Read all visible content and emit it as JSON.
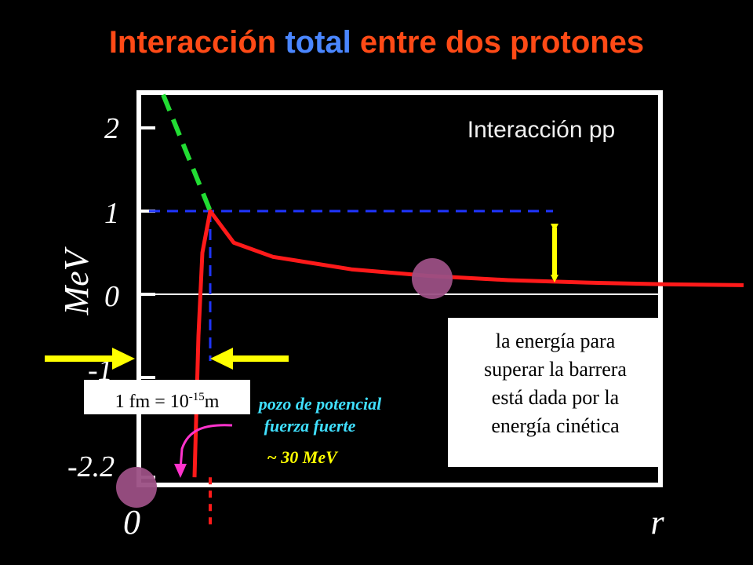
{
  "title": {
    "part1": "Interacción",
    "highlight": "total",
    "part2": "entre dos protones",
    "color_main": "#ff4a16",
    "color_highlight": "#4a86ff"
  },
  "chart_data": {
    "type": "line",
    "inset_label": "Interacción pp",
    "ylabel": "MeV",
    "xlabel": "r",
    "y_ticks": [
      "2",
      "1",
      "0",
      "-1",
      "-2.2"
    ],
    "x_origin_label": "0",
    "well_annotation": {
      "line1": "pozo de potencial",
      "line2": "fuerza fuerte",
      "depth": "~ 30 MeV"
    },
    "series": [
      {
        "style": "solid",
        "color": "#ff1a1a",
        "points": [
          [
            1.0,
            -2.2
          ],
          [
            1.05,
            -0.5
          ],
          [
            1.1,
            0.5
          ],
          [
            1.2,
            1.0
          ],
          [
            1.5,
            0.62
          ],
          [
            2,
            0.45
          ],
          [
            3,
            0.3
          ],
          [
            4,
            0.22
          ],
          [
            5,
            0.17
          ],
          [
            6,
            0.14
          ],
          [
            7,
            0.12
          ],
          [
            8,
            0.11
          ]
        ]
      },
      {
        "style": "dashed",
        "color": "#22dd33",
        "points": [
          [
            0.6,
            2.4
          ],
          [
            1.2,
            1.0
          ]
        ]
      },
      {
        "style": "dotted",
        "color": "#ff1a1a",
        "points": [
          [
            1.2,
            -2.2
          ],
          [
            1.2,
            -2.8
          ]
        ]
      }
    ],
    "barrier_height": 1,
    "colors": {
      "axis": "#ffffff",
      "guide": "#1f35ff",
      "arrow": "#ffff00",
      "marker": "#9b4f84",
      "well_text": "#40e0ff",
      "well_depth_text": "#ffff00",
      "well_arrow": "#ff33cc"
    }
  },
  "notes": {
    "energy": [
      "la energía para",
      "superar la barrera",
      "está dada por la",
      "energía cinética"
    ],
    "fm": {
      "text": "1 fm = 10",
      "exponent": "-15",
      "unit": "m"
    }
  }
}
